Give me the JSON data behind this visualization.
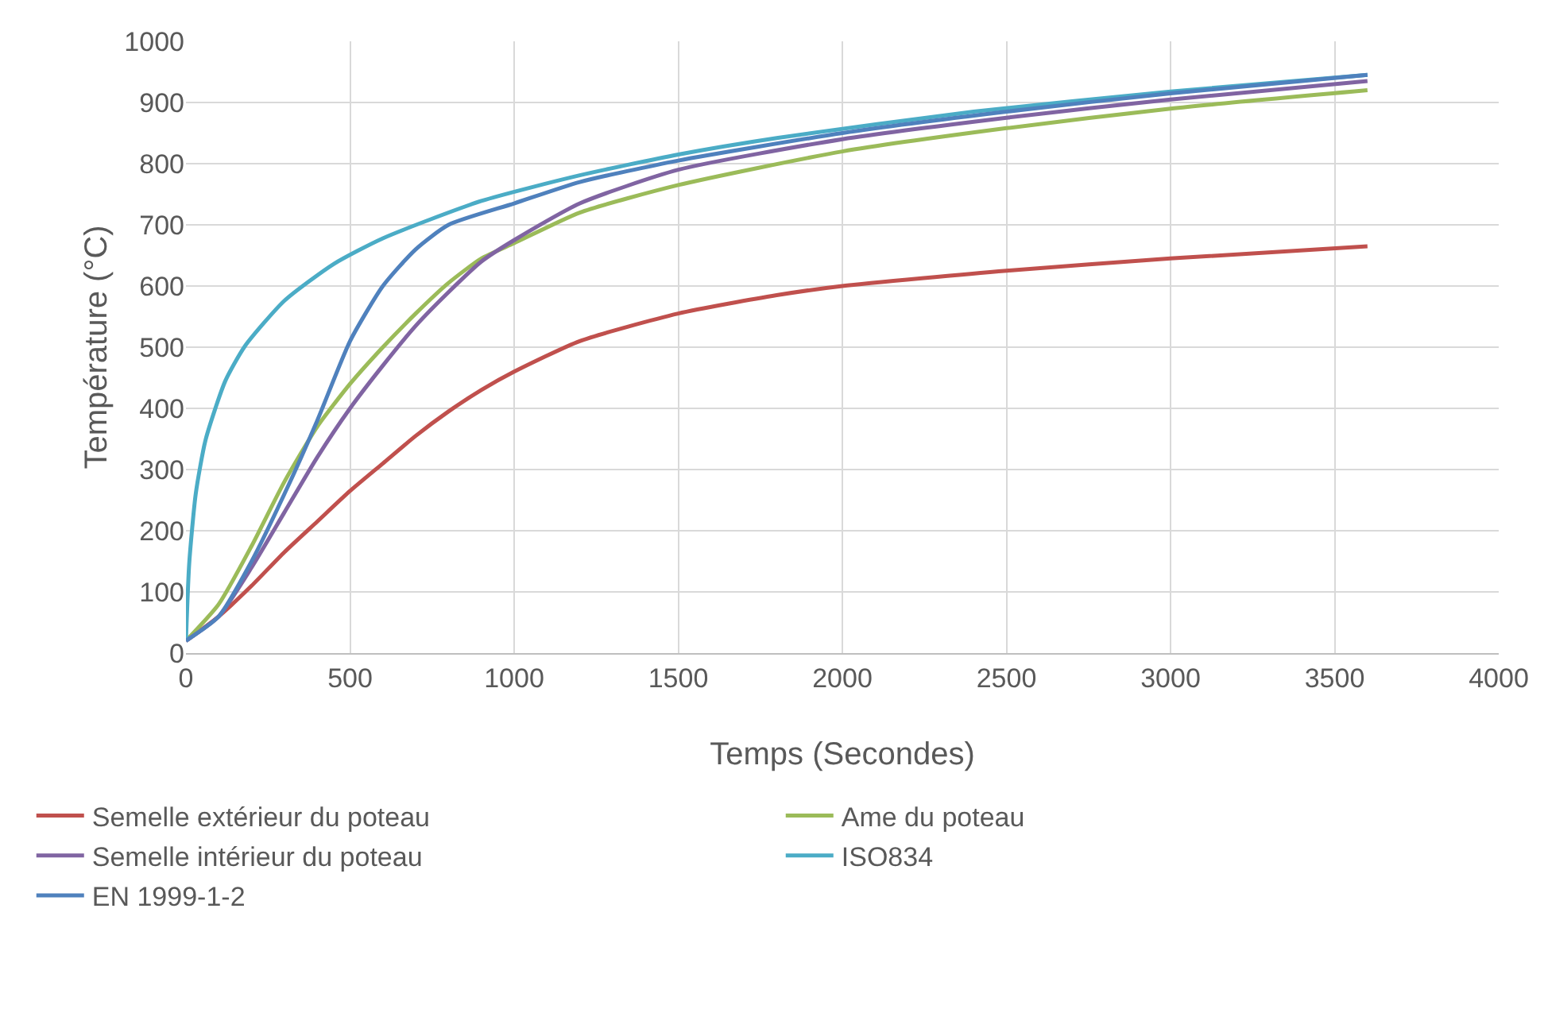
{
  "chart_data": {
    "type": "line",
    "xlabel": "Temps (Secondes)",
    "ylabel": "Température (°C)",
    "xlim": [
      0,
      4000
    ],
    "xticks": [
      0,
      500,
      1000,
      1500,
      2000,
      2500,
      3000,
      3500,
      4000
    ],
    "ylim": [
      0,
      1000
    ],
    "yticks": [
      0,
      100,
      200,
      300,
      400,
      500,
      600,
      700,
      800,
      900,
      1000
    ],
    "grid": true,
    "legend": "bottom",
    "line_style": "solid",
    "series": [
      {
        "name": "Semelle extérieur du poteau",
        "color": "#c0504d",
        "x": [
          0,
          100,
          200,
          300,
          400,
          500,
          600,
          700,
          800,
          900,
          1000,
          1200,
          1500,
          1800,
          2000,
          2500,
          3000,
          3600
        ],
        "values": [
          20,
          60,
          110,
          165,
          215,
          265,
          310,
          355,
          395,
          430,
          460,
          510,
          555,
          585,
          600,
          625,
          645,
          665
        ]
      },
      {
        "name": "Ame du poteau",
        "color": "#9bbb59",
        "x": [
          0,
          100,
          200,
          300,
          400,
          500,
          600,
          700,
          800,
          900,
          1000,
          1200,
          1500,
          2000,
          2500,
          3000,
          3600
        ],
        "values": [
          20,
          80,
          175,
          280,
          370,
          440,
          500,
          555,
          605,
          645,
          670,
          720,
          765,
          820,
          858,
          890,
          920
        ]
      },
      {
        "name": "Semelle intérieur du poteau",
        "color": "#8064a2",
        "x": [
          0,
          100,
          200,
          300,
          400,
          500,
          600,
          700,
          800,
          900,
          1000,
          1200,
          1500,
          2000,
          2500,
          3000,
          3600
        ],
        "values": [
          20,
          60,
          140,
          230,
          320,
          400,
          470,
          535,
          590,
          640,
          675,
          735,
          790,
          840,
          875,
          905,
          935
        ]
      },
      {
        "name": "ISO834",
        "color": "#4bacc6",
        "x": [
          0,
          10,
          30,
          60,
          120,
          180,
          300,
          450,
          600,
          900,
          1200,
          1500,
          1800,
          2400,
          3000,
          3600
        ],
        "values": [
          20,
          147,
          261,
          349,
          445,
          502,
          576,
          636,
          678,
          739,
          781,
          815,
          842,
          885,
          918,
          945
        ]
      },
      {
        "name": "EN 1999-1-2",
        "color": "#4f81bd",
        "x": [
          0,
          100,
          200,
          300,
          400,
          500,
          600,
          700,
          800,
          1000,
          1200,
          1500,
          2000,
          2500,
          3000,
          3600
        ],
        "values": [
          20,
          60,
          150,
          260,
          380,
          510,
          600,
          660,
          700,
          735,
          770,
          805,
          850,
          885,
          915,
          945
        ]
      }
    ]
  }
}
